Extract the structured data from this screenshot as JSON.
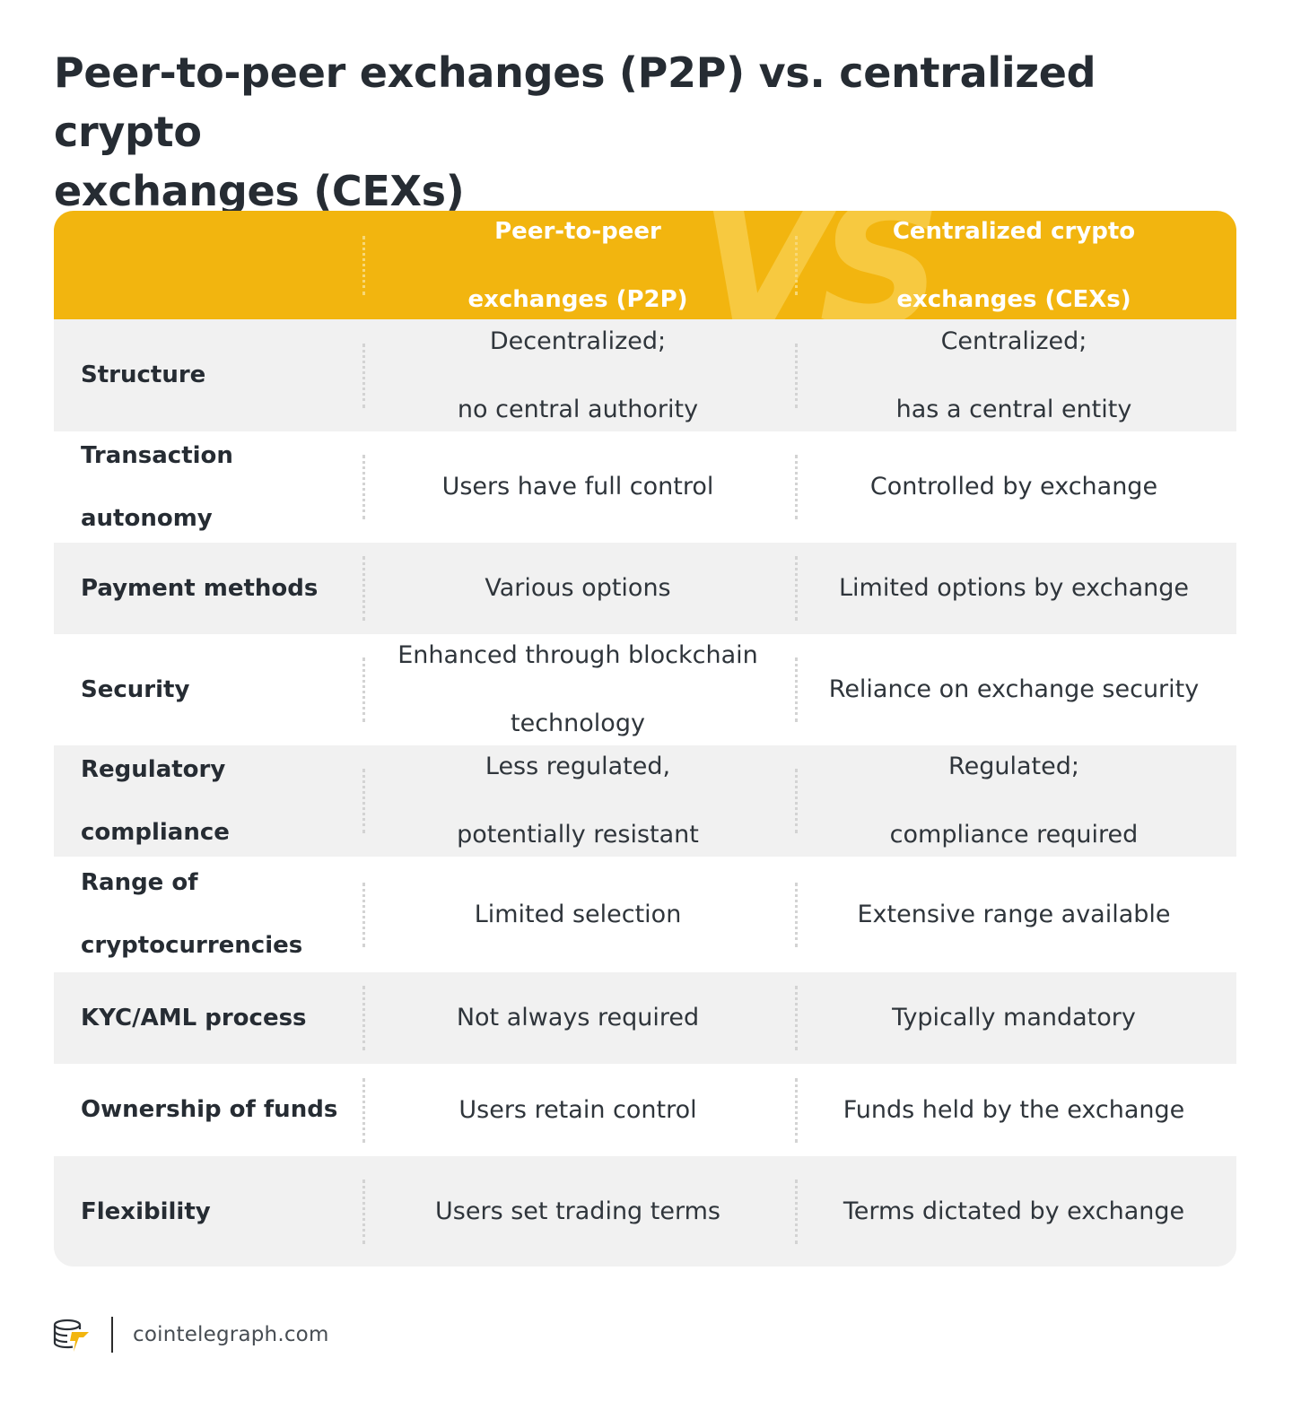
{
  "title_line1": "Peer-to-peer exchanges (P2P) vs. centralized crypto",
  "title_line2": "exchanges (CEXs)",
  "header": {
    "vs": "VS",
    "col1_line1": "Peer-to-peer",
    "col1_line2": "exchanges (P2P)",
    "col2_line1": "Centralized crypto",
    "col2_line2": "exchanges (CEXs)"
  },
  "rows": [
    {
      "label": [
        "Structure"
      ],
      "p2p": [
        "Decentralized;",
        "no central authority"
      ],
      "cex": [
        "Centralized;",
        "has a central entity"
      ]
    },
    {
      "label": [
        "Transaction",
        "autonomy"
      ],
      "p2p": [
        "Users have full control"
      ],
      "cex": [
        "Controlled by exchange"
      ]
    },
    {
      "label": [
        "Payment methods"
      ],
      "p2p": [
        "Various options"
      ],
      "cex": [
        "Limited options by exchange"
      ]
    },
    {
      "label": [
        "Security"
      ],
      "p2p": [
        "Enhanced through blockchain",
        "technology"
      ],
      "cex": [
        "Reliance on exchange security"
      ]
    },
    {
      "label": [
        "Regulatory",
        "compliance"
      ],
      "p2p": [
        "Less regulated,",
        "potentially resistant"
      ],
      "cex": [
        "Regulated;",
        "compliance required"
      ]
    },
    {
      "label": [
        "Range of",
        "cryptocurrencies"
      ],
      "p2p": [
        "Limited selection"
      ],
      "cex": [
        "Extensive range available"
      ]
    },
    {
      "label": [
        "KYC/AML process"
      ],
      "p2p": [
        "Not always required"
      ],
      "cex": [
        "Typically mandatory"
      ]
    },
    {
      "label": [
        "Ownership of funds"
      ],
      "p2p": [
        "Users retain control"
      ],
      "cex": [
        "Funds held by the exchange"
      ]
    },
    {
      "label": [
        "Flexibility"
      ],
      "p2p": [
        "Users set trading terms"
      ],
      "cex": [
        "Terms dictated by exchange"
      ]
    }
  ],
  "footer": {
    "brand": "cointelegraph.com",
    "logo_icon": "cointelegraph-logo-icon"
  },
  "colors": {
    "header": "#f2b50f",
    "row_shaded": "#f1f1f1",
    "row_plain": "#ffffff",
    "title": "#262c33"
  }
}
